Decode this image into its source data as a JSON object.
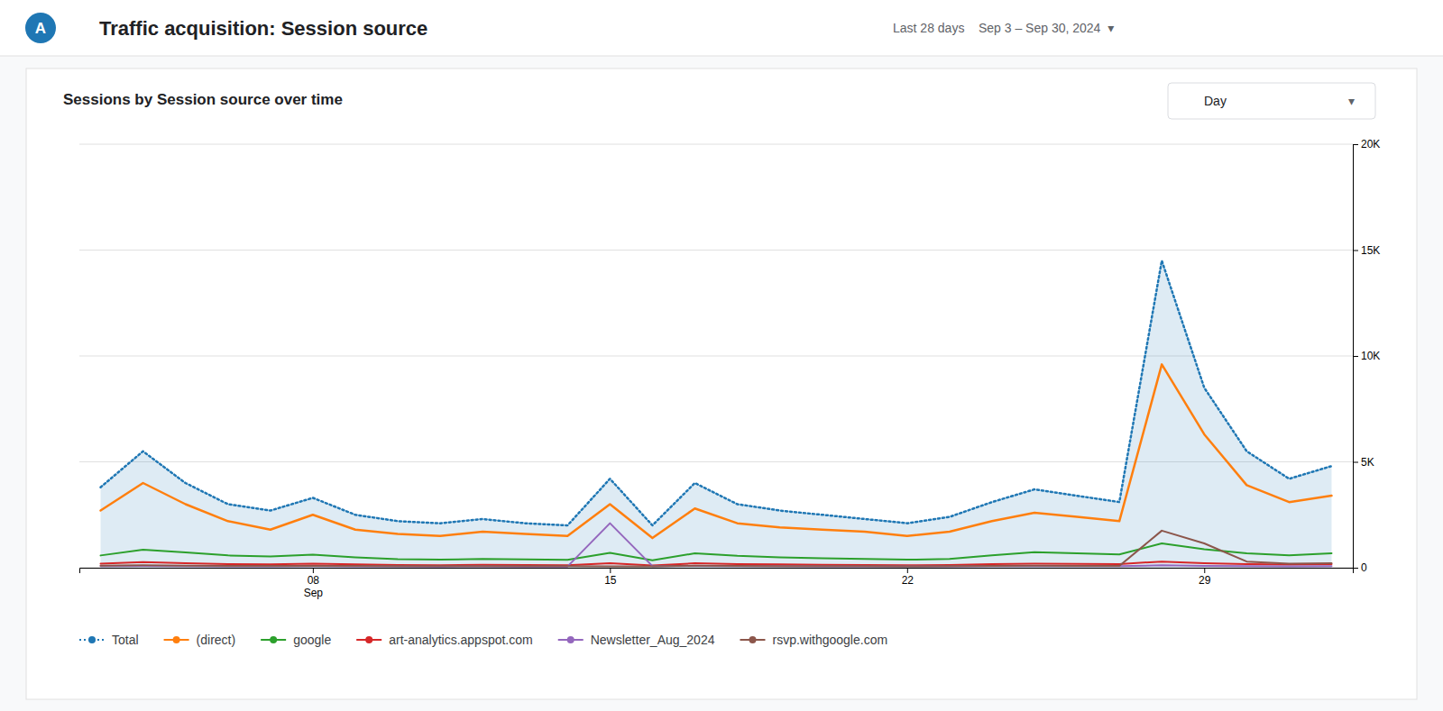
{
  "chart_data": {
    "type": "line",
    "title": "Sessions by Session source over time",
    "subtitle": "Traffic acquisition: Session source",
    "annotations": [
      "A",
      "Last 28 days    Sep 3 – Sep 30, 2024  ▾",
      "Day",
      "▾"
    ],
    "categories": [
      null,
      null,
      null,
      null,
      null,
      "08\nSep",
      null,
      null,
      null,
      null,
      null,
      null,
      "15",
      null,
      null,
      null,
      null,
      null,
      null,
      "22",
      null,
      null,
      null,
      null,
      null,
      null,
      "29",
      null,
      null,
      null
    ],
    "ylim": [
      0,
      20000
    ],
    "yticks": [
      0,
      {
        "value": 5000,
        "label": "5K"
      },
      {
        "value": 10000,
        "label": "10K"
      },
      {
        "value": 15000,
        "label": "15K"
      },
      {
        "value": 20000,
        "label": "20K"
      }
    ],
    "grid": true,
    "legend": "bottom",
    "series": [
      {
        "name": "Total",
        "type": "area",
        "line_style": "dotted",
        "values": [
          3800,
          5500,
          4000,
          3000,
          2700,
          3300,
          2500,
          2200,
          2100,
          2300,
          2100,
          2000,
          4200,
          2000,
          4000,
          3000,
          2700,
          2500,
          2300,
          2100,
          2400,
          3100,
          3700,
          3400,
          3100,
          14500,
          8500,
          5500,
          4200,
          4800
        ]
      },
      {
        "name": "(direct)",
        "type": "line",
        "line_style": "solid",
        "values": [
          2700,
          4000,
          3000,
          2200,
          1800,
          2500,
          1800,
          1600,
          1500,
          1700,
          1600,
          1500,
          3000,
          1400,
          2800,
          2100,
          1900,
          1800,
          1700,
          1500,
          1700,
          2200,
          2600,
          2400,
          2200,
          9600,
          6300,
          3900,
          3100,
          3400
        ]
      },
      {
        "name": "google",
        "type": "line",
        "line_style": "solid",
        "values": [
          580,
          850,
          720,
          580,
          530,
          620,
          490,
          400,
          380,
          420,
          390,
          370,
          700,
          350,
          680,
          560,
          490,
          450,
          420,
          380,
          410,
          580,
          730,
          680,
          630,
          1150,
          870,
          680,
          590,
          680
        ]
      },
      {
        "name": "art-analytics.appspot.com",
        "type": "line",
        "line_style": "solid",
        "values": [
          190,
          270,
          210,
          170,
          155,
          190,
          155,
          125,
          115,
          135,
          125,
          115,
          210,
          105,
          210,
          170,
          155,
          135,
          125,
          115,
          125,
          175,
          195,
          185,
          175,
          290,
          215,
          175,
          145,
          175
        ]
      },
      {
        "name": "Newsletter_Aug_2024",
        "type": "line",
        "line_style": "solid",
        "values": [
          75,
          85,
          75,
          68,
          65,
          75,
          65,
          62,
          58,
          62,
          58,
          58,
          2100,
          78,
          85,
          75,
          70,
          65,
          63,
          60,
          63,
          70,
          75,
          72,
          70,
          115,
          85,
          70,
          62,
          70
        ]
      },
      {
        "name": "rsvp.withgoogle.com",
        "type": "line",
        "line_style": "solid",
        "values": [
          95,
          115,
          95,
          85,
          80,
          90,
          80,
          75,
          72,
          75,
          73,
          70,
          68,
          67,
          95,
          85,
          78,
          73,
          70,
          68,
          70,
          85,
          95,
          90,
          85,
          1750,
          1150,
          290,
          195,
          215
        ]
      }
    ]
  }
}
